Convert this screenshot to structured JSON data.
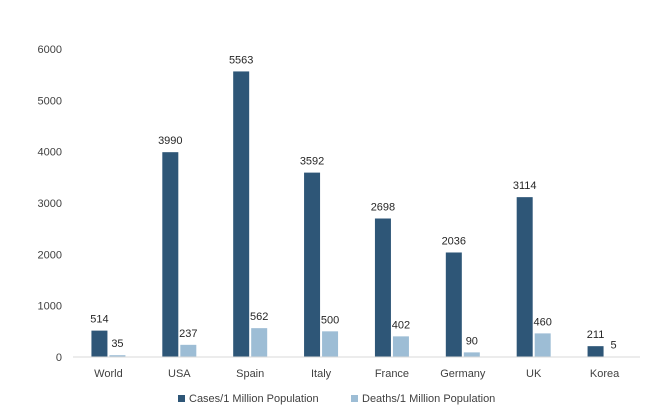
{
  "chart_data": {
    "type": "bar",
    "categories": [
      "World",
      "USA",
      "Spain",
      "Italy",
      "France",
      "Germany",
      "UK",
      "Korea"
    ],
    "series": [
      {
        "name": "Cases/1 Million Population",
        "color": "#2e5677",
        "values": [
          514,
          3990,
          5563,
          3592,
          2698,
          2036,
          3114,
          211
        ]
      },
      {
        "name": "Deaths/1 Million Population",
        "color": "#9dbdd5",
        "values": [
          35,
          237,
          562,
          500,
          402,
          90,
          460,
          5
        ]
      }
    ],
    "yticks": [
      0,
      1000,
      2000,
      3000,
      4000,
      5000,
      6000
    ],
    "ylim": [
      0,
      6000
    ],
    "grid": false,
    "legend_position": "bottom"
  }
}
